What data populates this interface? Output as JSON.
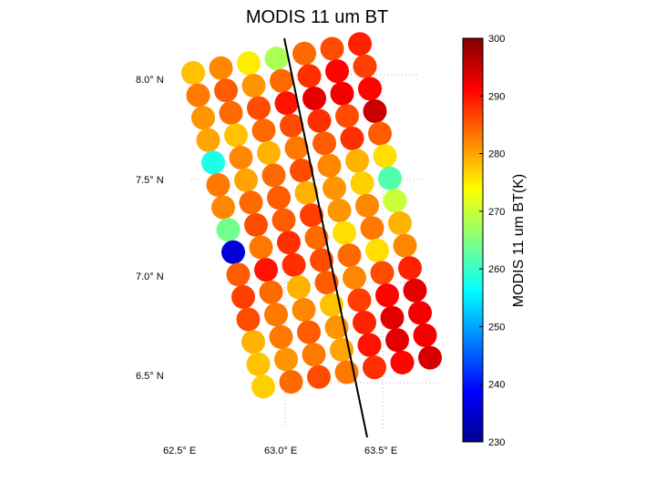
{
  "chart_data": {
    "type": "heatmap",
    "title": "MODIS 11 um BT",
    "colorbar": {
      "label": "MODIS 11 um BT(K)",
      "min": 230,
      "max": 300,
      "ticks": [
        "300",
        "290",
        "280",
        "270",
        "260",
        "250",
        "240",
        "230"
      ],
      "colormap": "jet"
    },
    "x_axis": {
      "ticks": [
        "62.5° E",
        "63.0° E",
        "63.5° E"
      ],
      "range": [
        62.5,
        63.5
      ]
    },
    "y_axis": {
      "ticks": [
        "8.0° N",
        "7.5° N",
        "7.0° N",
        "6.5° N"
      ],
      "range": [
        6.5,
        8.0
      ]
    },
    "grid": "dotted",
    "track_line": true,
    "footprint_rows": [
      [
        278,
        282,
        275,
        268,
        284,
        286,
        289
      ],
      [
        283,
        285,
        281,
        284,
        288,
        291,
        287
      ],
      [
        281,
        284,
        286,
        290,
        293,
        292,
        291
      ],
      [
        280,
        278,
        284,
        286,
        288,
        286,
        295
      ],
      [
        258,
        282,
        279,
        283,
        285,
        288,
        285
      ],
      [
        283,
        280,
        284,
        286,
        282,
        279,
        276
      ],
      [
        282,
        284,
        285,
        279,
        281,
        277,
        262
      ],
      [
        264,
        286,
        285,
        287,
        281,
        282,
        270
      ],
      [
        236,
        283,
        288,
        284,
        276,
        283,
        279
      ],
      [
        285,
        290,
        288,
        286,
        284,
        276,
        282
      ],
      [
        287,
        284,
        279,
        285,
        282,
        286,
        289
      ],
      [
        286,
        283,
        282,
        278,
        287,
        291,
        293
      ],
      [
        279,
        283,
        285,
        281,
        289,
        293,
        292
      ],
      [
        278,
        281,
        283,
        280,
        290,
        293,
        292
      ],
      [
        277,
        284,
        286,
        283,
        288,
        291,
        294
      ]
    ]
  }
}
